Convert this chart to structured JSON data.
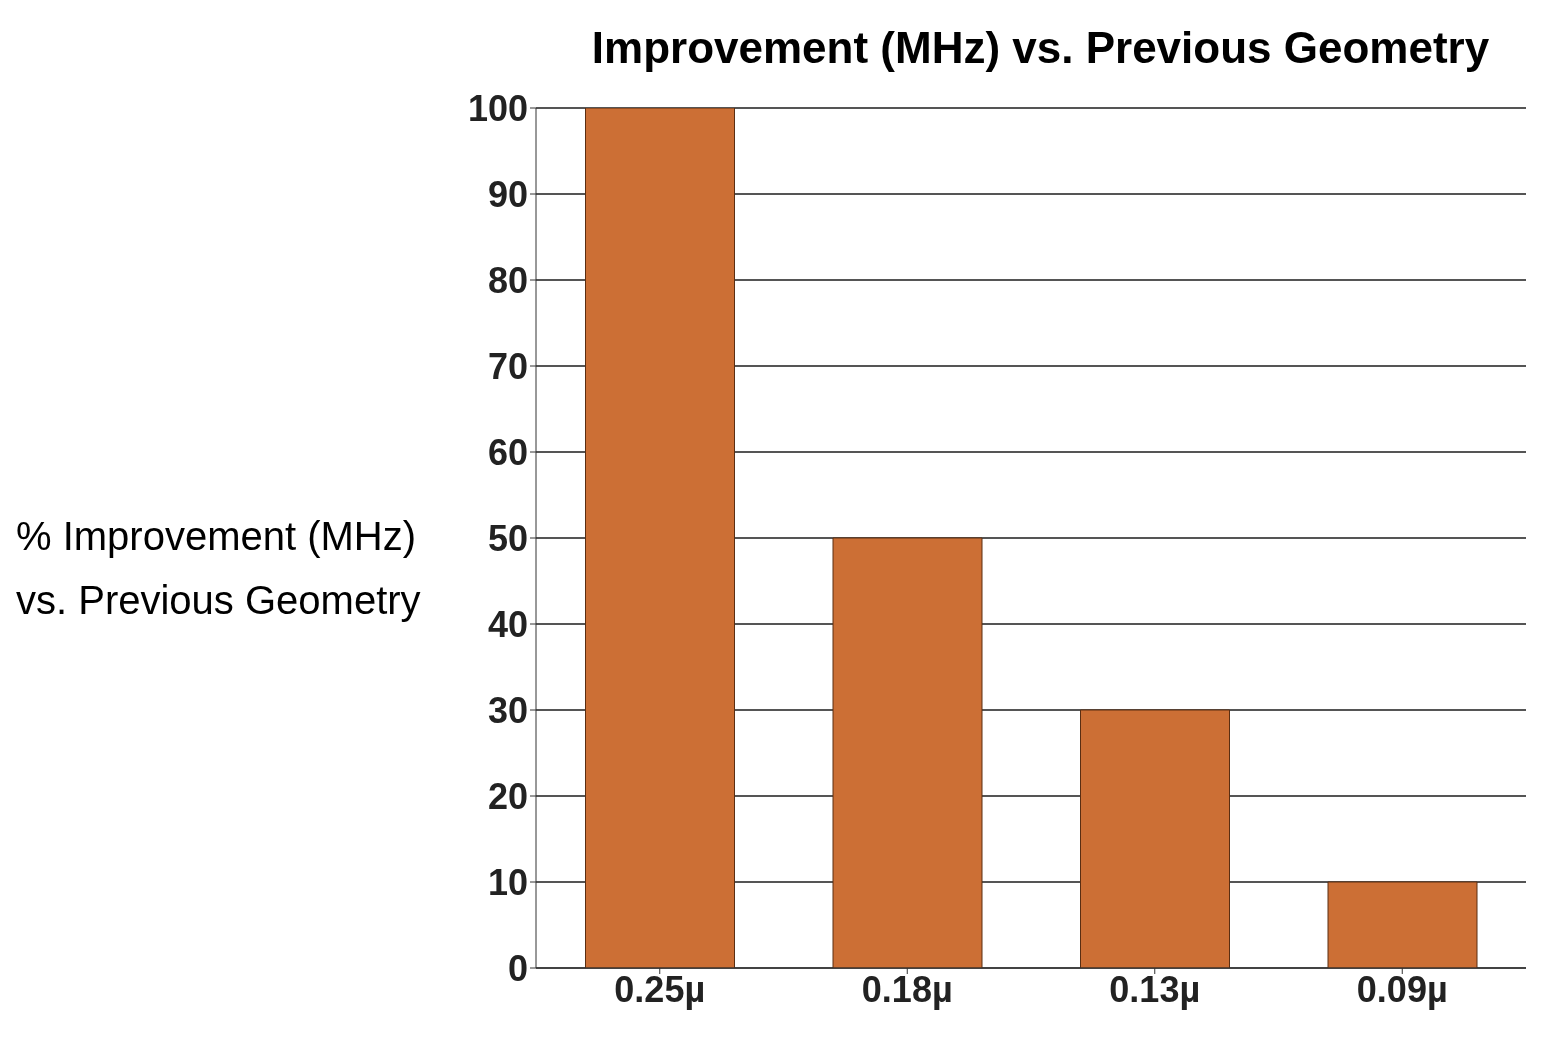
{
  "chart_data": {
    "type": "bar",
    "title": "Improvement (MHz) vs. Previous Geometry",
    "ylabel": "% Improvement (MHz) vs. Previous Geometry",
    "categories": [
      "0.25µ",
      "0.18µ",
      "0.13µ",
      "0.09µ"
    ],
    "values": [
      100,
      50,
      30,
      10
    ],
    "color": "#cc6f35",
    "ylim": [
      0,
      100
    ],
    "yticks": [
      0,
      10,
      20,
      30,
      40,
      50,
      60,
      70,
      80,
      90,
      100
    ],
    "grid": "y"
  }
}
